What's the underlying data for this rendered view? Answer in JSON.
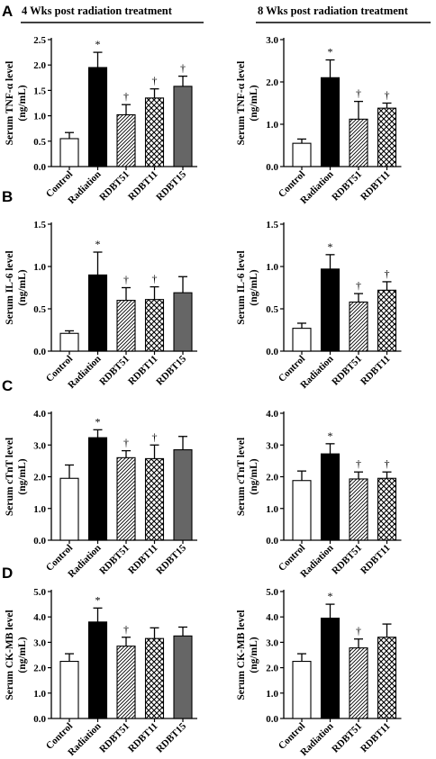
{
  "headers": {
    "left": "4 Wks post radiation treatment",
    "right": "8 Wks post radiation treatment"
  },
  "colors": {
    "control": "#ffffff",
    "radiation": "#000000",
    "rdbt51": "hatched-diagonal",
    "rdbt11": "crosshatch",
    "rdbt15": "#666666"
  },
  "chart_data": [
    {
      "type": "bar",
      "panel": "A",
      "col": 0,
      "ylabel_line1": "Serum TNF-α level",
      "ylabel_line2": "(ng/mL)",
      "ylim": [
        0,
        2.5
      ],
      "yticks": [
        "0.0",
        "0.5",
        "1.0",
        "1.5",
        "2.0",
        "2.5"
      ],
      "categories": [
        "Control",
        "Radiation",
        "RDBT51",
        "RDBT11",
        "RDBT15"
      ],
      "values": [
        0.55,
        1.95,
        1.02,
        1.35,
        1.58
      ],
      "errors": [
        0.12,
        0.3,
        0.2,
        0.18,
        0.2
      ],
      "sig": [
        "",
        "*",
        "†",
        "†",
        "†"
      ]
    },
    {
      "type": "bar",
      "panel": "",
      "col": 1,
      "ylabel_line1": "Serum TNF-α level",
      "ylabel_line2": "(ng/mL)",
      "ylim": [
        0,
        3.0
      ],
      "yticks": [
        "0.0",
        "1.0",
        "2.0",
        "3.0"
      ],
      "categories": [
        "Control",
        "Radiation",
        "RDBT51",
        "RDBT11"
      ],
      "values": [
        0.55,
        2.1,
        1.12,
        1.38
      ],
      "errors": [
        0.1,
        0.42,
        0.42,
        0.12
      ],
      "sig": [
        "",
        "*",
        "†",
        "†"
      ]
    },
    {
      "type": "bar",
      "panel": "B",
      "col": 0,
      "ylabel_line1": "Serum IL-6 level",
      "ylabel_line2": "(ng/mL)",
      "ylim": [
        0,
        1.5
      ],
      "yticks": [
        "0.0",
        "0.5",
        "1.0",
        "1.5"
      ],
      "categories": [
        "Control",
        "Radiation",
        "RDBT51",
        "RDBT11",
        "RDBT15"
      ],
      "values": [
        0.21,
        0.9,
        0.6,
        0.61,
        0.69
      ],
      "errors": [
        0.03,
        0.27,
        0.15,
        0.15,
        0.19
      ],
      "sig": [
        "",
        "*",
        "†",
        "†",
        ""
      ]
    },
    {
      "type": "bar",
      "panel": "",
      "col": 1,
      "ylabel_line1": "Serum IL-6 level",
      "ylabel_line2": "(ng/mL)",
      "ylim": [
        0,
        1.5
      ],
      "yticks": [
        "0.0",
        "0.5",
        "1.0",
        "1.5"
      ],
      "categories": [
        "Control",
        "Radiation",
        "RDBT51",
        "RDBT11"
      ],
      "values": [
        0.27,
        0.97,
        0.58,
        0.72
      ],
      "errors": [
        0.06,
        0.17,
        0.1,
        0.1
      ],
      "sig": [
        "",
        "*",
        "†",
        "†"
      ]
    },
    {
      "type": "bar",
      "panel": "C",
      "col": 0,
      "ylabel_line1": "Serum cTnT level",
      "ylabel_line2": "(ng/mL)",
      "ylim": [
        0,
        4.0
      ],
      "yticks": [
        "0.0",
        "1.0",
        "2.0",
        "3.0",
        "4.0"
      ],
      "categories": [
        "Control",
        "Radiation",
        "RDBT51",
        "RDBT11",
        "RDBT15"
      ],
      "values": [
        1.95,
        3.23,
        2.6,
        2.57,
        2.85
      ],
      "errors": [
        0.42,
        0.25,
        0.22,
        0.43,
        0.42
      ],
      "sig": [
        "",
        "*",
        "†",
        "†",
        ""
      ]
    },
    {
      "type": "bar",
      "panel": "",
      "col": 1,
      "ylabel_line1": "Serum cTnT level",
      "ylabel_line2": "(ng/mL)",
      "ylim": [
        0,
        4.0
      ],
      "yticks": [
        "0.0",
        "1.0",
        "2.0",
        "3.0",
        "4.0"
      ],
      "categories": [
        "Control",
        "Radiation",
        "RDBT51",
        "RDBT11"
      ],
      "values": [
        1.88,
        2.72,
        1.93,
        1.95
      ],
      "errors": [
        0.3,
        0.32,
        0.22,
        0.2
      ],
      "sig": [
        "",
        "*",
        "†",
        "†"
      ]
    },
    {
      "type": "bar",
      "panel": "D",
      "col": 0,
      "ylabel_line1": "Serum CK-MB level",
      "ylabel_line2": "(ng/mL)",
      "ylim": [
        0,
        5.0
      ],
      "yticks": [
        "0.0",
        "1.0",
        "2.0",
        "3.0",
        "4.0",
        "5.0"
      ],
      "categories": [
        "Control",
        "Radiation",
        "RDBT51",
        "RDBT11",
        "RDBT15"
      ],
      "values": [
        2.25,
        3.8,
        2.85,
        3.15,
        3.25
      ],
      "errors": [
        0.3,
        0.55,
        0.35,
        0.42,
        0.35
      ],
      "sig": [
        "",
        "*",
        "†",
        "",
        ""
      ]
    },
    {
      "type": "bar",
      "panel": "",
      "col": 1,
      "ylabel_line1": "Serum CK-MB level",
      "ylabel_line2": "(ng/mL)",
      "ylim": [
        0,
        5.0
      ],
      "yticks": [
        "0.0",
        "1.0",
        "2.0",
        "3.0",
        "4.0",
        "5.0"
      ],
      "categories": [
        "Control",
        "Radiation",
        "RDBT51",
        "RDBT11"
      ],
      "values": [
        2.25,
        3.95,
        2.78,
        3.2
      ],
      "errors": [
        0.3,
        0.55,
        0.35,
        0.52
      ],
      "sig": [
        "",
        "*",
        "†",
        ""
      ]
    }
  ]
}
